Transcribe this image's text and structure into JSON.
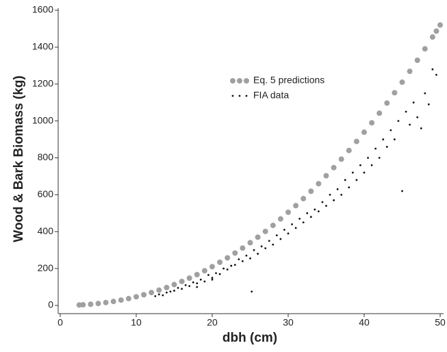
{
  "chart_data": {
    "type": "scatter",
    "x_label": "dbh (cm)",
    "y_label": "Wood & Bark Biomass (kg)",
    "xlim": [
      0,
      50
    ],
    "xticks": [
      0,
      10,
      20,
      30,
      40,
      50
    ],
    "ylim": [
      0,
      1600
    ],
    "yticks": [
      0,
      200,
      400,
      600,
      800,
      1000,
      1200,
      1400,
      1600
    ],
    "legend_position": "upper center",
    "series": [
      {
        "name": "Eq. 5 predictions",
        "color": "#a0a0a0",
        "x": [
          2.5,
          3,
          4,
          5,
          6,
          7,
          8,
          9,
          10,
          11,
          12,
          13,
          14,
          15,
          16,
          17,
          18,
          19,
          20,
          21,
          22,
          23,
          24,
          25,
          26,
          27,
          28,
          29,
          30,
          31,
          32,
          33,
          34,
          35,
          36,
          37,
          38,
          39,
          40,
          41,
          42,
          43,
          44,
          45,
          46,
          47,
          48,
          49,
          49.5,
          50
        ],
        "values": [
          2.4,
          3.5,
          6.5,
          10.5,
          15.6,
          21.7,
          29,
          37,
          47,
          58,
          70,
          83,
          97,
          113,
          130,
          148,
          167,
          188,
          210,
          234,
          258,
          284,
          311,
          340,
          370,
          401,
          434,
          469,
          505,
          541,
          579,
          619,
          660,
          703,
          747,
          793,
          840,
          889,
          939,
          990,
          1042,
          1097,
          1153,
          1210,
          1269,
          1329,
          1391,
          1455,
          1487,
          1520
        ]
      },
      {
        "name": "FIA data",
        "color": "#111111",
        "x": [
          12.5,
          13,
          13.5,
          14,
          14.5,
          15,
          15.5,
          16,
          16.5,
          17,
          17.5,
          18,
          18,
          18.5,
          19,
          19.5,
          20,
          20,
          20.5,
          21,
          21.5,
          22,
          22.5,
          23,
          23.5,
          24,
          24.5,
          25,
          25.2,
          25.5,
          26,
          26.5,
          27,
          27.5,
          28,
          28.5,
          29,
          29.5,
          30,
          30.5,
          31,
          31.5,
          32,
          32.5,
          33,
          33.5,
          34,
          34.5,
          35,
          35.5,
          36,
          36.5,
          37,
          37.5,
          38,
          38.5,
          39,
          39.5,
          40,
          40.5,
          41,
          41.5,
          42,
          42.5,
          43,
          43.5,
          44,
          44.5,
          45,
          45.5,
          46,
          46.5,
          47,
          47.5,
          48,
          48.5,
          49,
          49.5
        ],
        "values": [
          50,
          60,
          55,
          70,
          75,
          80,
          95,
          90,
          110,
          105,
          125,
          120,
          100,
          140,
          130,
          165,
          150,
          140,
          175,
          170,
          200,
          195,
          215,
          220,
          250,
          240,
          270,
          255,
          75,
          300,
          280,
          320,
          310,
          350,
          330,
          380,
          360,
          410,
          390,
          440,
          420,
          470,
          450,
          500,
          480,
          520,
          510,
          560,
          540,
          600,
          570,
          630,
          600,
          680,
          640,
          720,
          680,
          760,
          720,
          800,
          760,
          850,
          800,
          900,
          860,
          950,
          900,
          1000,
          620,
          1050,
          980,
          1100,
          1020,
          960,
          1150,
          1090,
          1280,
          1250
        ]
      }
    ]
  }
}
